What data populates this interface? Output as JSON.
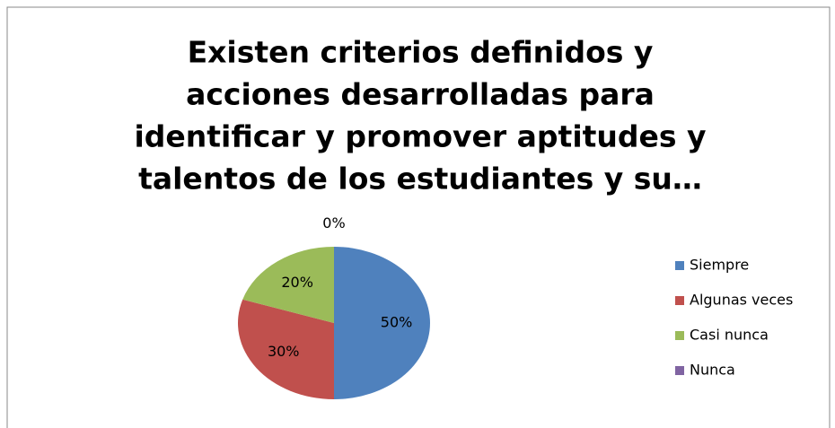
{
  "chart_data": {
    "type": "pie",
    "title": [
      "Existen criterios definidos y",
      "acciones desarrolladas para",
      "identificar y promover aptitudes y",
      "talentos de los estudiantes y su…"
    ],
    "categories": [
      "Siempre",
      "Algunas veces",
      "Casi nunca",
      "Nunca"
    ],
    "values": [
      50,
      30,
      20,
      0
    ],
    "value_labels": [
      "50%",
      "30%",
      "20%",
      "0%"
    ],
    "colors": [
      "#4f81bd",
      "#c0504d",
      "#9bbb59",
      "#8064a2"
    ],
    "legend": "right"
  }
}
